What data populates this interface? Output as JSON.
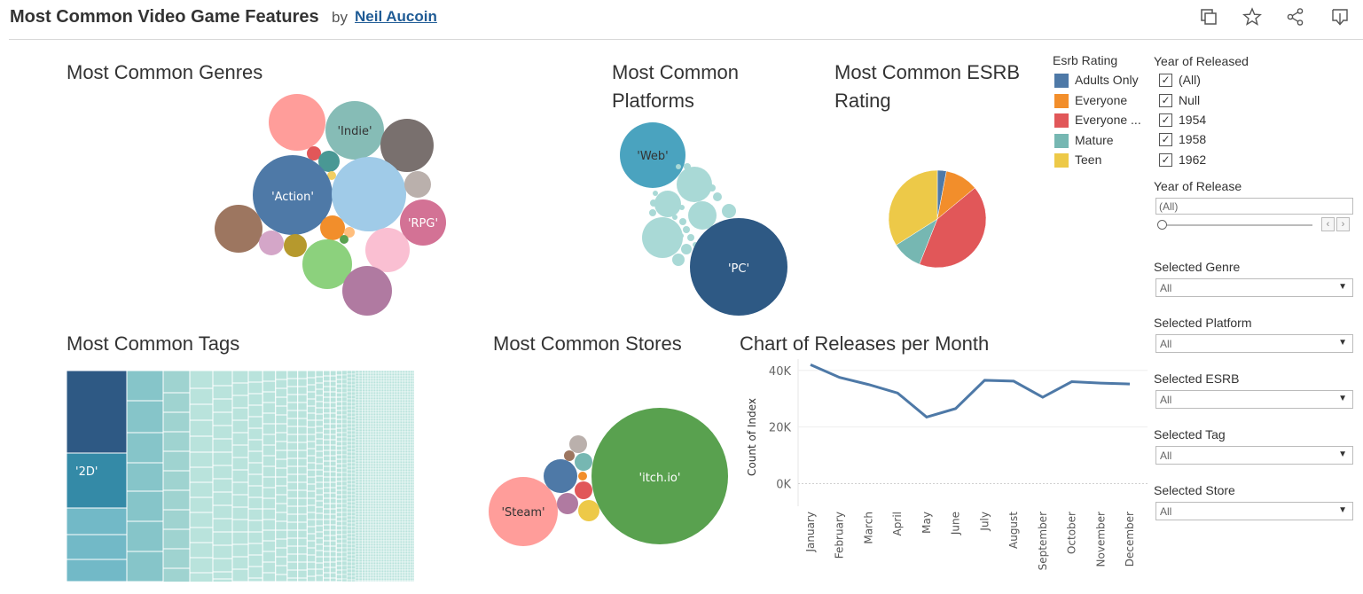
{
  "header": {
    "title": "Most Common Video Game Features",
    "by": "by",
    "author": "Neil Aucoin",
    "icons": [
      "duplicate-icon",
      "favorite-star-icon",
      "share-icon",
      "download-icon"
    ]
  },
  "sheets": {
    "genres": "Most Common Genres",
    "platforms_line1": "Most Common",
    "platforms_line2": "Platforms",
    "esrb_line1": "Most Common ESRB",
    "esrb_line2": "Rating",
    "tags": "Most Common Tags",
    "stores": "Most Common Stores",
    "releases": "Chart of Releases per Month"
  },
  "bubble_labels": {
    "indie": "'Indie'",
    "action": "'Action'",
    "rpg": "'RPG'",
    "web": "'Web'",
    "pc": "'PC'",
    "itchio": "'itch.io'",
    "steam": "'Steam'",
    "tag_2d": "'2D'"
  },
  "esrb_legend": {
    "title": "Esrb Rating",
    "items": [
      {
        "label": "Adults Only",
        "color": "#4e79a7"
      },
      {
        "label": "Everyone",
        "color": "#f28e2b"
      },
      {
        "label": "Everyone ...",
        "color": "#e15759"
      },
      {
        "label": "Mature",
        "color": "#76b7b2"
      },
      {
        "label": "Teen",
        "color": "#edc948"
      }
    ]
  },
  "filters": {
    "year_released": {
      "title": "Year of Released",
      "options": [
        {
          "label": "(All)",
          "checked": true
        },
        {
          "label": "Null",
          "checked": true
        },
        {
          "label": "1954",
          "checked": true
        },
        {
          "label": "1958",
          "checked": true
        },
        {
          "label": "1962",
          "checked": true
        }
      ]
    },
    "year_release": {
      "title": "Year of Release",
      "value": "(All)"
    },
    "genre": {
      "title": "Selected Genre",
      "value": "All"
    },
    "platform": {
      "title": "Selected Platform",
      "value": "All"
    },
    "esrb": {
      "title": "Selected ESRB",
      "value": "All"
    },
    "tag": {
      "title": "Selected Tag",
      "value": "All"
    },
    "store": {
      "title": "Selected Store",
      "value": "All"
    }
  },
  "chart_data": [
    {
      "type": "pie",
      "categories": [
        "Adults Only",
        "Everyone",
        "Everyone ...",
        "Mature",
        "Teen"
      ],
      "values": [
        3,
        11,
        42,
        10,
        34
      ],
      "colors": [
        "#4e79a7",
        "#f28e2b",
        "#e15759",
        "#76b7b2",
        "#edc948"
      ]
    },
    {
      "type": "line",
      "title": "Chart of Releases per Month",
      "ylabel": "Count of Index",
      "categories": [
        "January",
        "February",
        "March",
        "April",
        "May",
        "June",
        "July",
        "August",
        "September",
        "October",
        "November",
        "December"
      ],
      "values": [
        42000,
        37500,
        35000,
        32000,
        23500,
        26500,
        36500,
        36200,
        30500,
        36000,
        35500,
        35200
      ],
      "yticks": [
        "40K",
        "20K",
        "0K"
      ],
      "ylim": [
        -8000,
        44000
      ],
      "color": "#4e79a7"
    }
  ]
}
